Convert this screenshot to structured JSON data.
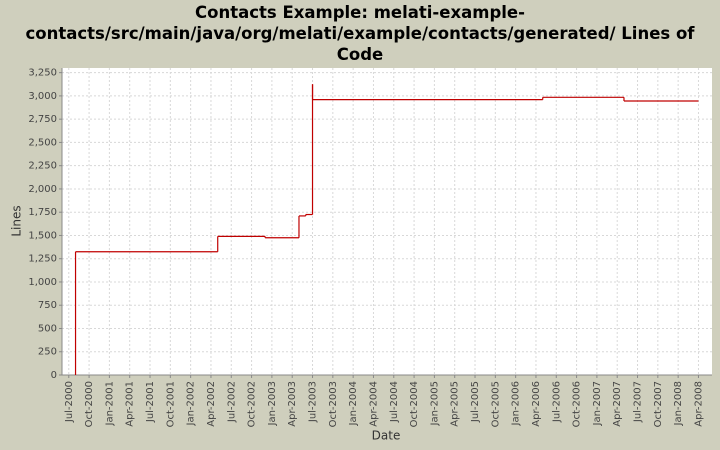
{
  "chart_data": {
    "type": "step",
    "title": "Contacts Example: melati-example-contacts/src/main/java/org/melati/example/contacts/generated/ Lines of Code",
    "x_label": "Date",
    "y_label": "Lines",
    "x": [
      "2000-08",
      "2000-08",
      "2002-05",
      "2002-12",
      "2003-05",
      "2003-06",
      "2003-07",
      "2003-07",
      "2006-05",
      "2007-05",
      "2008-04"
    ],
    "values": [
      0,
      1325,
      1490,
      1475,
      1710,
      1725,
      3125,
      2960,
      2985,
      2945,
      2945
    ],
    "color": "#c00000",
    "xlim": [
      "2000-06",
      "2008-06"
    ],
    "xticks": [
      {
        "value": "2000-07",
        "label": "Jul-2000"
      },
      {
        "value": "2000-10",
        "label": "Oct-2000"
      },
      {
        "value": "2001-01",
        "label": "Jan-2001"
      },
      {
        "value": "2001-04",
        "label": "Apr-2001"
      },
      {
        "value": "2001-07",
        "label": "Jul-2001"
      },
      {
        "value": "2001-10",
        "label": "Oct-2001"
      },
      {
        "value": "2002-01",
        "label": "Jan-2002"
      },
      {
        "value": "2002-04",
        "label": "Apr-2002"
      },
      {
        "value": "2002-07",
        "label": "Jul-2002"
      },
      {
        "value": "2002-10",
        "label": "Oct-2002"
      },
      {
        "value": "2003-01",
        "label": "Jan-2003"
      },
      {
        "value": "2003-04",
        "label": "Apr-2003"
      },
      {
        "value": "2003-07",
        "label": "Jul-2003"
      },
      {
        "value": "2003-10",
        "label": "Oct-2003"
      },
      {
        "value": "2004-01",
        "label": "Jan-2004"
      },
      {
        "value": "2004-04",
        "label": "Apr-2004"
      },
      {
        "value": "2004-07",
        "label": "Jul-2004"
      },
      {
        "value": "2004-10",
        "label": "Oct-2004"
      },
      {
        "value": "2005-01",
        "label": "Jan-2005"
      },
      {
        "value": "2005-04",
        "label": "Apr-2005"
      },
      {
        "value": "2005-07",
        "label": "Jul-2005"
      },
      {
        "value": "2005-10",
        "label": "Oct-2005"
      },
      {
        "value": "2006-01",
        "label": "Jan-2006"
      },
      {
        "value": "2006-04",
        "label": "Apr-2006"
      },
      {
        "value": "2006-07",
        "label": "Jul-2006"
      },
      {
        "value": "2006-10",
        "label": "Oct-2006"
      },
      {
        "value": "2007-01",
        "label": "Jan-2007"
      },
      {
        "value": "2007-04",
        "label": "Apr-2007"
      },
      {
        "value": "2007-07",
        "label": "Jul-2007"
      },
      {
        "value": "2007-10",
        "label": "Oct-2007"
      },
      {
        "value": "2008-01",
        "label": "Jan-2008"
      },
      {
        "value": "2008-04",
        "label": "Apr-2008"
      }
    ],
    "ylim": [
      0,
      3300
    ],
    "yticks": [
      0,
      250,
      500,
      750,
      {
        "value": 1000,
        "label": "1,000"
      },
      {
        "value": 1250,
        "label": "1,250"
      },
      {
        "value": 1500,
        "label": "1,500"
      },
      {
        "value": 1750,
        "label": "1,750"
      },
      {
        "value": 2000,
        "label": "2,000"
      },
      {
        "value": 2250,
        "label": "2,250"
      },
      {
        "value": 2500,
        "label": "2,500"
      },
      {
        "value": 2750,
        "label": "2,750"
      },
      {
        "value": 3000,
        "label": "3,000"
      },
      {
        "value": 3250,
        "label": "3,250"
      }
    ],
    "grid": true
  }
}
